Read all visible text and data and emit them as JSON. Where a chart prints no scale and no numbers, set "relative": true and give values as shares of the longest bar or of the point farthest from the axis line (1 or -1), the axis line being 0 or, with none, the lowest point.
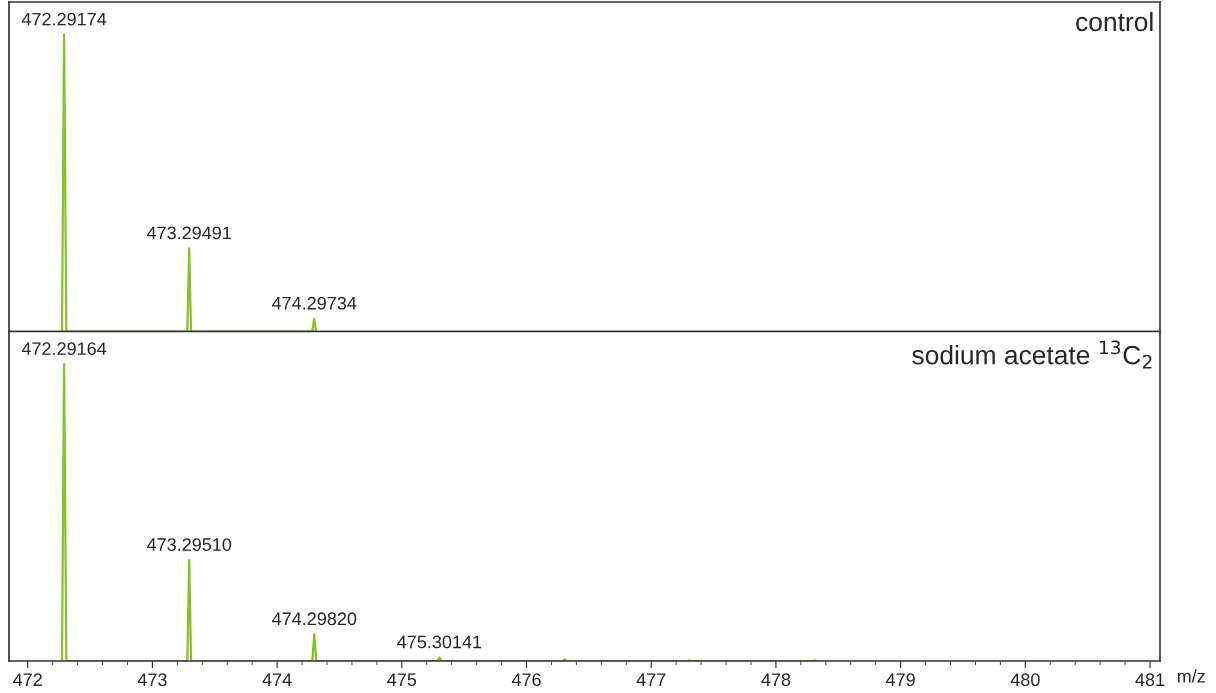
{
  "chart_data": [
    {
      "type": "line",
      "relative": true,
      "title": "control",
      "xlim": [
        471.85,
        481.08
      ],
      "xticks": [
        472,
        473,
        474,
        475,
        476,
        477,
        478,
        479,
        480,
        481
      ],
      "tick_labels": false,
      "marker": "none",
      "line_style": "solid",
      "series": [
        {
          "color": "#8cbf26",
          "x": [
            472.275,
            472.29174,
            472.31,
            473.28,
            473.29491,
            473.31,
            474.282,
            474.29734,
            474.312
          ],
          "values": [
            0,
            1,
            0,
            0,
            0.28,
            0,
            0,
            0.043,
            0
          ]
        }
      ],
      "annotations": [
        {
          "text": "472.29174",
          "x": 472.29174,
          "y": 1
        },
        {
          "text": "473.29491",
          "x": 473.29491,
          "y": 0.28
        },
        {
          "text": "474.29734",
          "x": 474.29734,
          "y": 0.043
        }
      ]
    },
    {
      "type": "line",
      "relative": true,
      "title": "sodium acetate $^{13}$C$_{2}$",
      "xlabel": "m/z",
      "xlim": [
        471.85,
        481.08
      ],
      "xticks": [
        472,
        473,
        474,
        475,
        476,
        477,
        478,
        479,
        480,
        481
      ],
      "marker": "none",
      "line_style": "solid",
      "series": [
        {
          "color": "#8cbf26",
          "x": [
            472.275,
            472.29164,
            472.31,
            473.28,
            473.2951,
            473.31,
            474.282,
            474.2982,
            474.314,
            475.285,
            475.30141,
            475.317,
            476.29,
            476.305,
            476.32,
            477.295,
            477.308,
            477.32,
            478.3,
            478.312,
            478.325
          ],
          "values": [
            0,
            1,
            0,
            0,
            0.34,
            0,
            0,
            0.09,
            0,
            0,
            0.012,
            0,
            0,
            0.006,
            0,
            0,
            0.002,
            0,
            0,
            0.002,
            0
          ]
        }
      ],
      "annotations": [
        {
          "text": "472.29164",
          "x": 472.29164,
          "y": 1
        },
        {
          "text": "473.29510",
          "x": 473.2951,
          "y": 0.34
        },
        {
          "text": "474.29820",
          "x": 474.2982,
          "y": 0.09
        },
        {
          "text": "475.30141",
          "x": 475.30141,
          "y": 0.012
        }
      ]
    }
  ]
}
